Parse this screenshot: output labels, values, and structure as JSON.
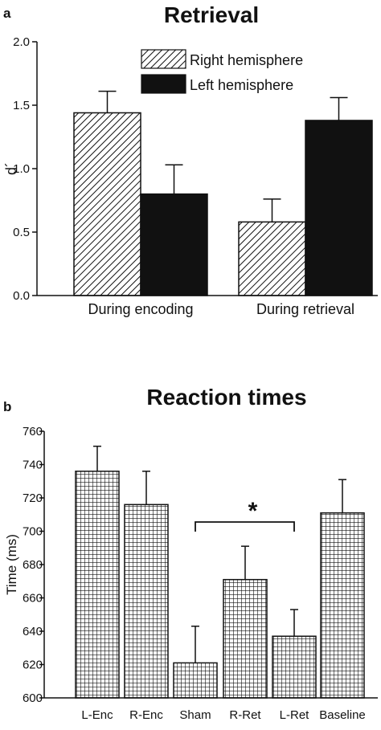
{
  "chart_data": [
    {
      "type": "bar",
      "panel_label": "a",
      "title": "Retrieval",
      "xlabel": "",
      "ylabel": "d´",
      "ylim": [
        0,
        2.0
      ],
      "yticks": [
        "0.0",
        "0.5",
        "1.0",
        "1.5",
        "2.0"
      ],
      "categories": [
        "During encoding",
        "During retrieval"
      ],
      "series": [
        {
          "name": "Right hemisphere",
          "pattern": "diagonal-hatch",
          "values": [
            1.44,
            0.58
          ],
          "errors": [
            0.17,
            0.18
          ]
        },
        {
          "name": "Left hemisphere",
          "pattern": "solid-black",
          "values": [
            0.8,
            1.38
          ],
          "errors": [
            0.23,
            0.18
          ]
        }
      ],
      "legend_position": "top-right",
      "grid": false
    },
    {
      "type": "bar",
      "panel_label": "b",
      "title": "Reaction times",
      "xlabel": "",
      "ylabel": "Time (ms)",
      "ylim": [
        600,
        760
      ],
      "yticks": [
        "600",
        "620",
        "640",
        "660",
        "680",
        "700",
        "720",
        "740",
        "760"
      ],
      "categories": [
        "L-Enc",
        "R-Enc",
        "Sham",
        "R-Ret",
        "L-Ret",
        "Baseline"
      ],
      "values": [
        736,
        716,
        621,
        671,
        637,
        711
      ],
      "errors": [
        15,
        20,
        22,
        20,
        16,
        20
      ],
      "pattern": "grid-hatch",
      "significance": {
        "from": "Sham",
        "to": "L-Ret",
        "label": "*"
      },
      "grid": false
    }
  ]
}
